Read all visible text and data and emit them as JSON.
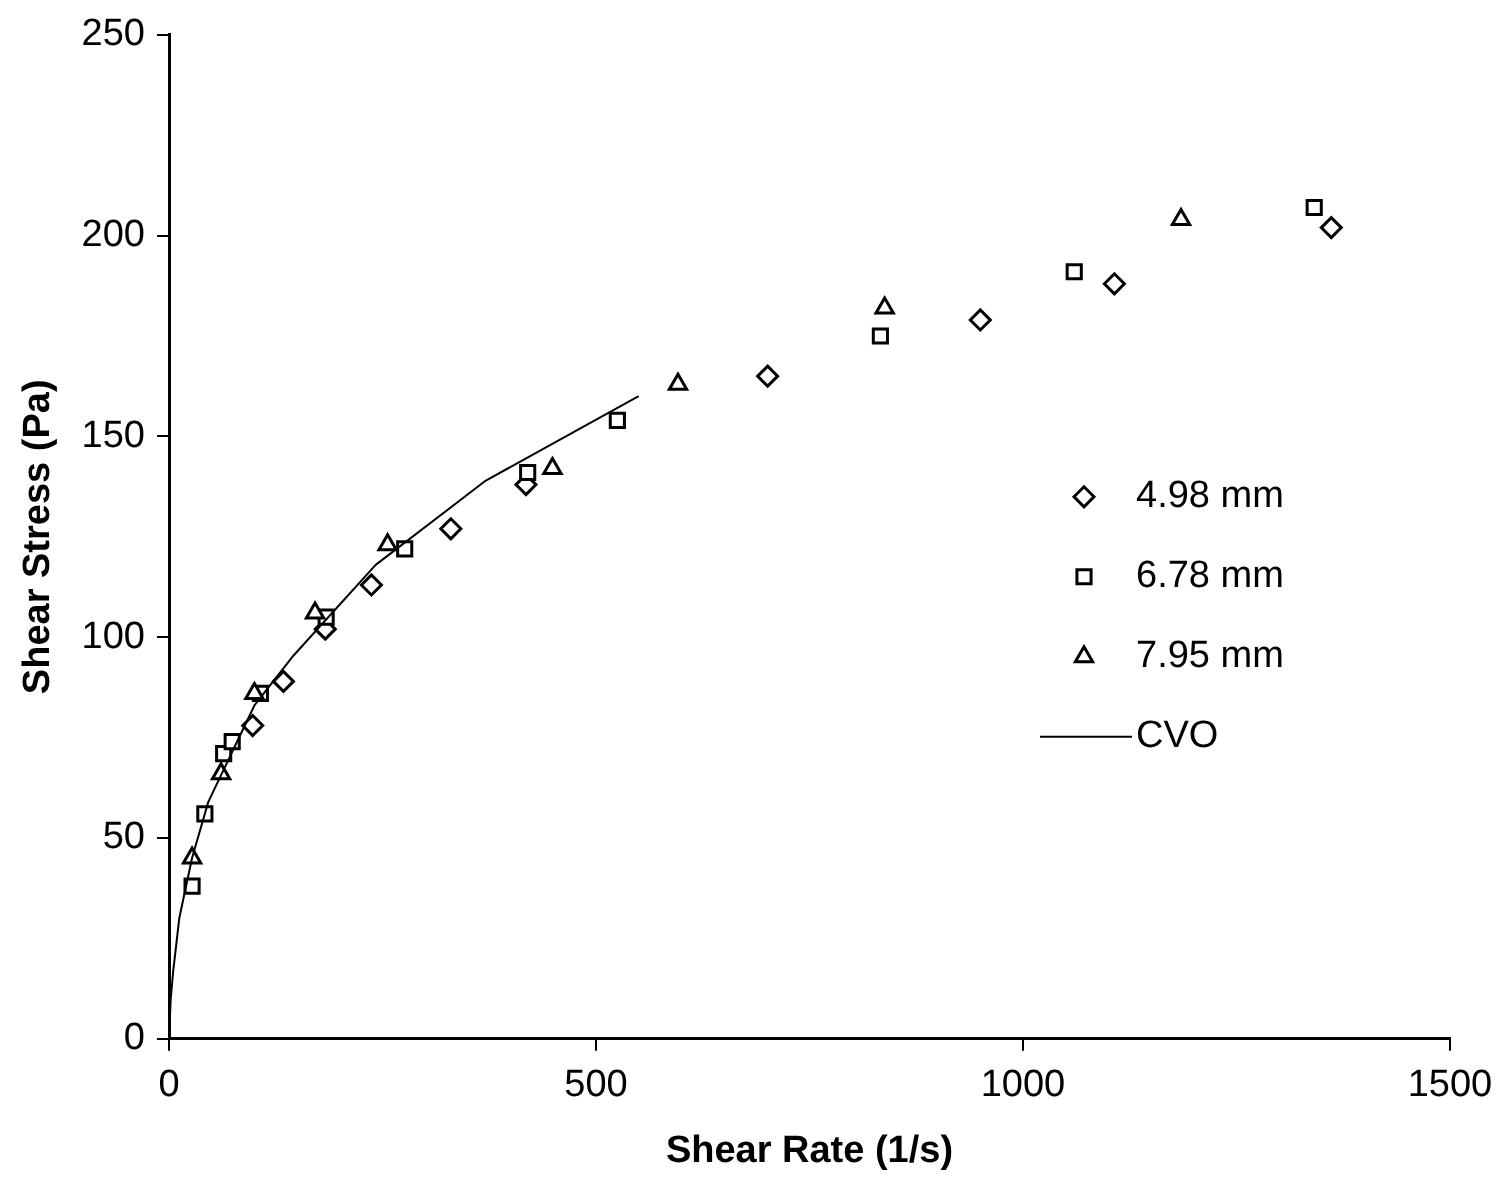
{
  "chart_data": {
    "type": "scatter",
    "xlabel": "Shear Rate (1/s)",
    "ylabel": "Shear Stress (Pa)",
    "xlim": [
      0,
      1500
    ],
    "xticks": [
      0,
      500,
      1000,
      1500
    ],
    "ylim": [
      0,
      250
    ],
    "yticks": [
      0,
      50,
      100,
      150,
      200,
      250
    ],
    "grid": false,
    "legend": "right",
    "series": [
      {
        "name": "4.98 mm",
        "color": "#000000",
        "marker": "diamond",
        "x": [
          98,
          134,
          183,
          237,
          330,
          418,
          701,
          950,
          1107,
          1361
        ],
        "values": [
          78,
          89,
          102,
          113,
          127,
          138,
          165,
          179,
          188,
          202
        ]
      },
      {
        "name": "6.78 mm",
        "color": "#000000",
        "marker": "square",
        "x": [
          27,
          42,
          64,
          74,
          107,
          184,
          276,
          420,
          525,
          833,
          1060,
          1341
        ],
        "values": [
          38,
          56,
          71,
          74,
          86,
          105,
          122,
          141,
          154,
          175,
          191,
          207
        ]
      },
      {
        "name": "7.95 mm",
        "color": "#000000",
        "marker": "triangle",
        "x": [
          27,
          61,
          100,
          171,
          256,
          449,
          596,
          838,
          1185
        ],
        "values": [
          45,
          66,
          86,
          106,
          123,
          142,
          163,
          182,
          204
        ]
      },
      {
        "name": "CVO",
        "type": "line",
        "color": "#000000",
        "marker": "none",
        "x": [
          0,
          2,
          5,
          12,
          27,
          46,
          100,
          144,
          242,
          371,
          550
        ],
        "values": [
          0,
          10,
          17,
          30,
          45,
          59,
          83,
          95,
          118,
          139,
          160
        ]
      }
    ]
  }
}
